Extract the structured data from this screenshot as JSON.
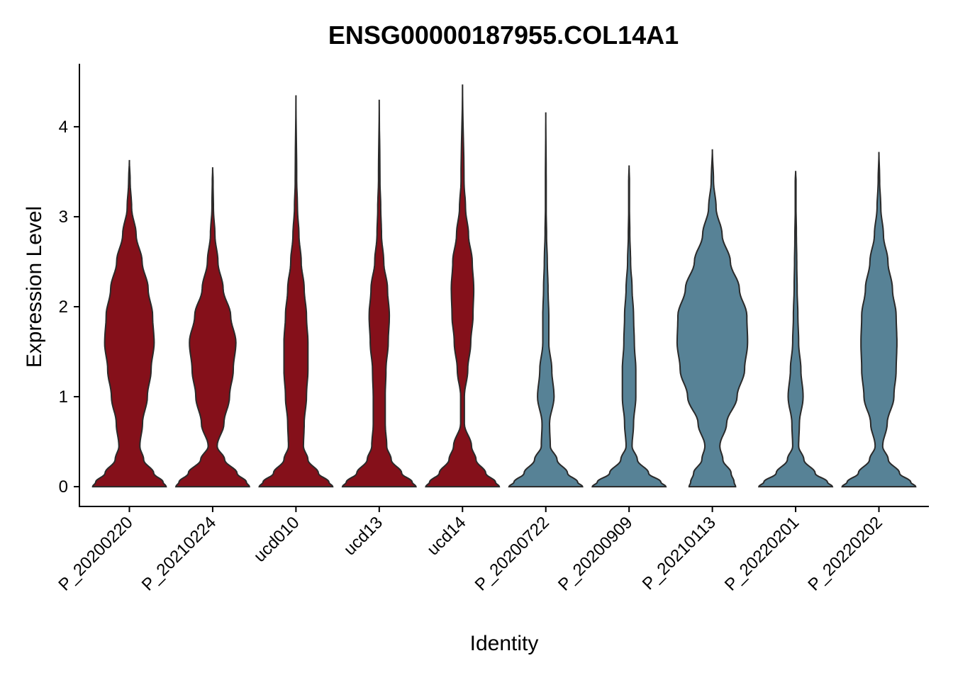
{
  "chart_data": {
    "type": "violin",
    "title": "ENSG00000187955.COL14A1",
    "xlabel": "Identity",
    "ylabel": "Expression Level",
    "ylim": [
      -0.22,
      4.7
    ],
    "yticks": [
      0,
      1,
      2,
      3,
      4
    ],
    "grid": false,
    "legend": "none",
    "colors": {
      "group_a": "#85101A",
      "group_b": "#578296",
      "stroke": "#2a2a2a"
    },
    "categories": [
      "P_20200220",
      "P_20210224",
      "ucd010",
      "ucd13",
      "ucd14",
      "P_20200722",
      "P_20200909",
      "P_20210113",
      "P_20220201",
      "P_20220202"
    ],
    "groups": [
      "group_a",
      "group_a",
      "group_a",
      "group_a",
      "group_a",
      "group_b",
      "group_b",
      "group_b",
      "group_b",
      "group_b"
    ],
    "max": [
      3.63,
      3.55,
      4.35,
      4.3,
      4.47,
      4.16,
      3.57,
      3.75,
      3.51,
      3.72
    ],
    "density_levels": [
      0,
      0.05,
      0.15,
      0.3,
      0.45,
      0.7,
      1.0,
      1.3,
      1.6,
      1.9,
      2.2,
      2.5,
      2.8,
      3.1,
      3.4
    ],
    "widths": [
      [
        0.98,
        0.9,
        0.65,
        0.38,
        0.28,
        0.35,
        0.48,
        0.58,
        0.66,
        0.62,
        0.5,
        0.34,
        0.18,
        0.06,
        0.02
      ],
      [
        0.98,
        0.9,
        0.65,
        0.32,
        0.12,
        0.3,
        0.45,
        0.55,
        0.62,
        0.48,
        0.28,
        0.14,
        0.06,
        0.02,
        0.01
      ],
      [
        0.98,
        0.88,
        0.6,
        0.32,
        0.2,
        0.22,
        0.28,
        0.32,
        0.32,
        0.28,
        0.22,
        0.14,
        0.08,
        0.04,
        0.02
      ],
      [
        0.98,
        0.88,
        0.6,
        0.32,
        0.2,
        0.16,
        0.16,
        0.18,
        0.24,
        0.27,
        0.22,
        0.12,
        0.06,
        0.04,
        0.02
      ],
      [
        0.98,
        0.88,
        0.62,
        0.36,
        0.24,
        0.05,
        0.05,
        0.14,
        0.22,
        0.28,
        0.3,
        0.26,
        0.16,
        0.08,
        0.04
      ],
      [
        0.98,
        0.85,
        0.58,
        0.3,
        0.12,
        0.1,
        0.22,
        0.16,
        0.08,
        0.08,
        0.06,
        0.04,
        0.02,
        0.01,
        0.01
      ],
      [
        0.98,
        0.85,
        0.52,
        0.22,
        0.08,
        0.12,
        0.18,
        0.18,
        0.14,
        0.12,
        0.08,
        0.04,
        0.02,
        0.01,
        0.01
      ],
      [
        0.62,
        0.58,
        0.5,
        0.28,
        0.2,
        0.38,
        0.66,
        0.86,
        0.94,
        0.92,
        0.72,
        0.48,
        0.26,
        0.1,
        0.03
      ],
      [
        0.98,
        0.85,
        0.52,
        0.22,
        0.08,
        0.1,
        0.2,
        0.14,
        0.08,
        0.06,
        0.04,
        0.03,
        0.02,
        0.01,
        0.01
      ],
      [
        0.98,
        0.85,
        0.55,
        0.25,
        0.1,
        0.22,
        0.4,
        0.46,
        0.48,
        0.46,
        0.36,
        0.24,
        0.12,
        0.05,
        0.02
      ]
    ]
  }
}
